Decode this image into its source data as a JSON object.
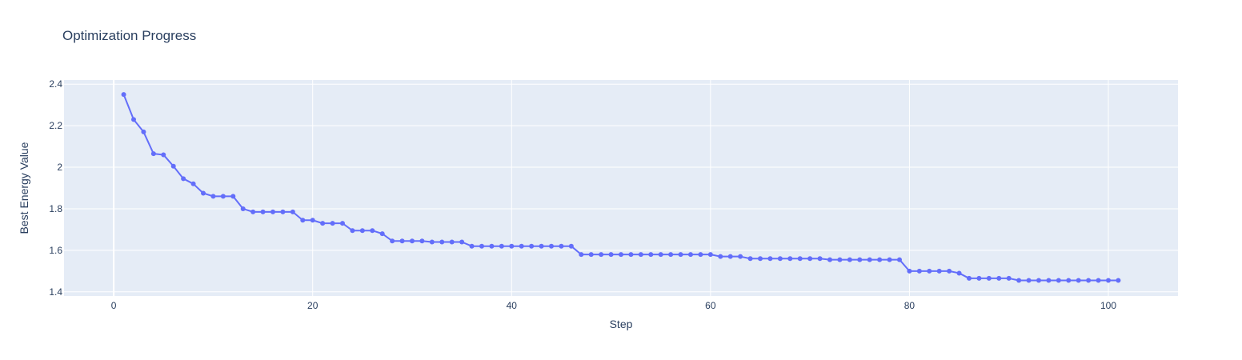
{
  "chart_data": {
    "type": "line",
    "title": "Optimization Progress",
    "xlabel": "Step",
    "ylabel": "Best Energy Value",
    "xlim": [
      -5,
      107
    ],
    "ylim": [
      1.38,
      2.42
    ],
    "x_ticks": [
      0,
      20,
      40,
      60,
      80,
      100
    ],
    "y_ticks": [
      1.4,
      1.6,
      1.8,
      2,
      2.2,
      2.4
    ],
    "x_tick_labels": [
      "0",
      "20",
      "40",
      "60",
      "80",
      "100"
    ],
    "y_tick_labels": [
      "1.4",
      "1.6",
      "1.8",
      "2",
      "2.2",
      "2.4"
    ],
    "grid": true,
    "colors": {
      "plot_bg": "#e5ecf6",
      "grid": "#ffffff",
      "series": "#636efa",
      "text": "#2a3f5f"
    },
    "series": [
      {
        "mode": "lines+markers",
        "x": [
          1,
          2,
          3,
          4,
          5,
          6,
          7,
          8,
          9,
          10,
          11,
          12,
          13,
          14,
          15,
          16,
          17,
          18,
          19,
          20,
          21,
          22,
          23,
          24,
          25,
          26,
          27,
          28,
          29,
          30,
          31,
          32,
          33,
          34,
          35,
          36,
          37,
          38,
          39,
          40,
          41,
          42,
          43,
          44,
          45,
          46,
          47,
          48,
          49,
          50,
          51,
          52,
          53,
          54,
          55,
          56,
          57,
          58,
          59,
          60,
          61,
          62,
          63,
          64,
          65,
          66,
          67,
          68,
          69,
          70,
          71,
          72,
          73,
          74,
          75,
          76,
          77,
          78,
          79,
          80,
          81,
          82,
          83,
          84,
          85,
          86,
          87,
          88,
          89,
          90,
          91,
          92,
          93,
          94,
          95,
          96,
          97,
          98,
          99,
          100,
          101
        ],
        "y": [
          2.35,
          2.23,
          2.17,
          2.065,
          2.06,
          2.005,
          1.945,
          1.92,
          1.875,
          1.86,
          1.86,
          1.86,
          1.8,
          1.785,
          1.785,
          1.785,
          1.785,
          1.785,
          1.745,
          1.745,
          1.73,
          1.73,
          1.73,
          1.695,
          1.695,
          1.695,
          1.68,
          1.645,
          1.645,
          1.645,
          1.645,
          1.64,
          1.64,
          1.64,
          1.64,
          1.62,
          1.62,
          1.62,
          1.62,
          1.62,
          1.62,
          1.62,
          1.62,
          1.62,
          1.62,
          1.62,
          1.58,
          1.58,
          1.58,
          1.58,
          1.58,
          1.58,
          1.58,
          1.58,
          1.58,
          1.58,
          1.58,
          1.58,
          1.58,
          1.58,
          1.57,
          1.57,
          1.57,
          1.56,
          1.56,
          1.56,
          1.56,
          1.56,
          1.56,
          1.56,
          1.56,
          1.555,
          1.555,
          1.555,
          1.555,
          1.555,
          1.555,
          1.555,
          1.555,
          1.5,
          1.5,
          1.5,
          1.5,
          1.5,
          1.49,
          1.465,
          1.465,
          1.465,
          1.465,
          1.465,
          1.455,
          1.455,
          1.455,
          1.455,
          1.455,
          1.455,
          1.455,
          1.455,
          1.455,
          1.455,
          1.455
        ]
      }
    ]
  }
}
